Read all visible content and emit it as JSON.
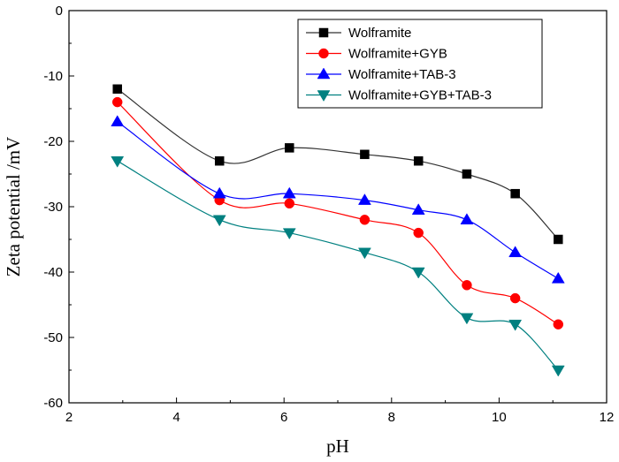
{
  "chart_data": {
    "type": "line",
    "xlabel": "pH",
    "ylabel": "Zeta potential /mV",
    "xlim": [
      2,
      12
    ],
    "ylim": [
      -60,
      0
    ],
    "xticks": [
      2,
      4,
      6,
      8,
      10,
      12
    ],
    "yticks": [
      0,
      -10,
      -20,
      -30,
      -40,
      -50,
      -60
    ],
    "grid": false,
    "legend_position": "top-right",
    "series": [
      {
        "name": "Wolframite",
        "marker": "square",
        "color": "#000000",
        "line_color": "#333333",
        "x": [
          2.9,
          4.8,
          6.1,
          7.5,
          8.5,
          9.4,
          10.3,
          11.1
        ],
        "y": [
          -12,
          -23,
          -21,
          -22,
          -23,
          -25,
          -28,
          -35
        ]
      },
      {
        "name": "Wolframite+GYB",
        "marker": "circle",
        "color": "#ff0000",
        "line_color": "#ff0000",
        "x": [
          2.9,
          4.8,
          6.1,
          7.5,
          8.5,
          9.4,
          10.3,
          11.1
        ],
        "y": [
          -14,
          -29,
          -29.5,
          -32,
          -34,
          -42,
          -44,
          -48
        ]
      },
      {
        "name": "Wolframite+TAB-3",
        "marker": "triangle-up",
        "color": "#0000ff",
        "line_color": "#0000ff",
        "x": [
          2.9,
          4.8,
          6.1,
          7.5,
          8.5,
          9.4,
          10.3,
          11.1
        ],
        "y": [
          -17,
          -28,
          -28,
          -29,
          -30.5,
          -32,
          -37,
          -41
        ]
      },
      {
        "name": "Wolframite+GYB+TAB-3",
        "marker": "triangle-down",
        "color": "#008080",
        "line_color": "#008080",
        "x": [
          2.9,
          4.8,
          6.1,
          7.5,
          8.5,
          9.4,
          10.3,
          11.1
        ],
        "y": [
          -23,
          -32,
          -34,
          -37,
          -40,
          -47,
          -48,
          -55
        ]
      }
    ]
  }
}
